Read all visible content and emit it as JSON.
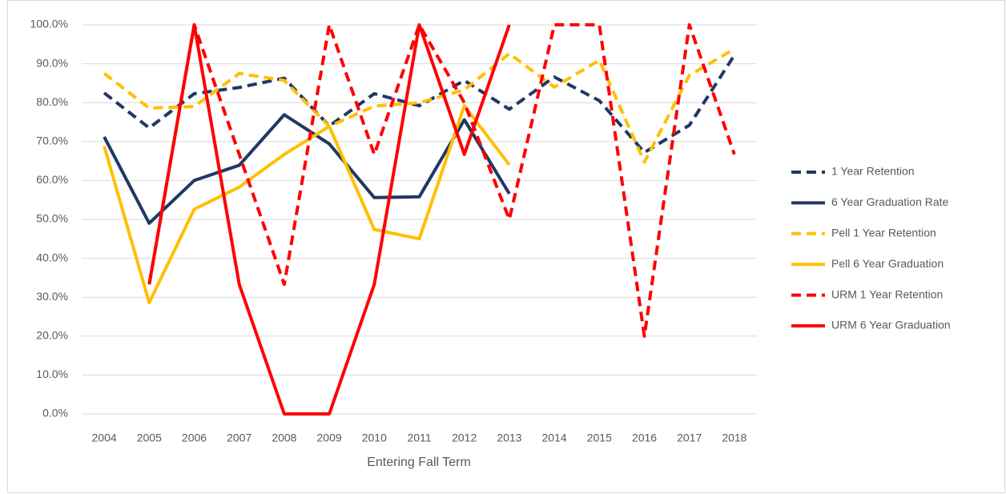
{
  "chart_data": {
    "type": "line",
    "x_label": "Entering Fall Term",
    "categories": [
      "2004",
      "2005",
      "2006",
      "2007",
      "2008",
      "2009",
      "2010",
      "2011",
      "2012",
      "2013",
      "2014",
      "2015",
      "2016",
      "2017",
      "2018"
    ],
    "ylim": [
      0,
      100
    ],
    "yticks": [
      {
        "value": 0,
        "label": "0.0%"
      },
      {
        "value": 10,
        "label": "10.0%"
      },
      {
        "value": 20,
        "label": "20.0%"
      },
      {
        "value": 30,
        "label": "30.0%"
      },
      {
        "value": 40,
        "label": "40.0%"
      },
      {
        "value": 50,
        "label": "50.0%"
      },
      {
        "value": 60,
        "label": "60.0%"
      },
      {
        "value": 70,
        "label": "70.0%"
      },
      {
        "value": 80,
        "label": "80.0%"
      },
      {
        "value": 90,
        "label": "90.0%"
      },
      {
        "value": 100,
        "label": "100.0%"
      }
    ],
    "grid": true,
    "legend": "right",
    "series": [
      {
        "name": "1 Year Retention",
        "color": "#203864",
        "dashed": true,
        "values": [
          82.5,
          73.5,
          82.3,
          83.9,
          86.3,
          74.0,
          82.3,
          79.2,
          85.7,
          78.3,
          86.6,
          80.5,
          67.2,
          74.2,
          92.2
        ]
      },
      {
        "name": "6 Year Graduation Rate",
        "color": "#203864",
        "dashed": false,
        "values": [
          71.2,
          49.0,
          60.0,
          63.9,
          76.9,
          69.4,
          55.6,
          55.8,
          75.6,
          56.6,
          null,
          null,
          null,
          null,
          null
        ]
      },
      {
        "name": "Pell 1 Year Retention",
        "color": "#ffc000",
        "dashed": true,
        "values": [
          87.5,
          78.6,
          79.0,
          87.5,
          85.7,
          73.9,
          79.1,
          80.0,
          83.3,
          92.6,
          84.0,
          90.9,
          64.7,
          87.0,
          93.8
        ]
      },
      {
        "name": "Pell 6 Year Graduation",
        "color": "#ffc000",
        "dashed": false,
        "values": [
          68.8,
          28.6,
          52.6,
          58.3,
          66.7,
          73.9,
          47.4,
          45.0,
          79.2,
          64.0,
          null,
          null,
          null,
          null,
          null
        ]
      },
      {
        "name": "URM 1 Year Retention",
        "color": "#ff0000",
        "dashed": true,
        "values": [
          null,
          33.3,
          100,
          66.7,
          33.3,
          100,
          66.7,
          100,
          80.0,
          50.0,
          100,
          100,
          20.0,
          100,
          66.7
        ]
      },
      {
        "name": "URM 6 Year Graduation",
        "color": "#ff0000",
        "dashed": false,
        "values": [
          null,
          33.3,
          100,
          33.3,
          0,
          0,
          33.3,
          100,
          66.7,
          100,
          null,
          null,
          null,
          null,
          null
        ]
      }
    ]
  }
}
